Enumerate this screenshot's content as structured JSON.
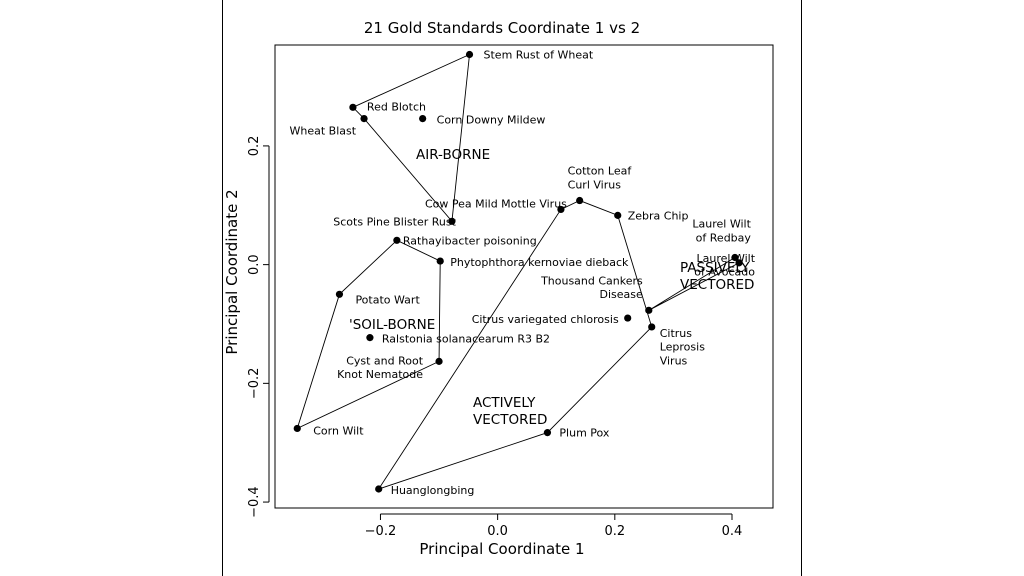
{
  "chart_data": {
    "type": "scatter",
    "title": "21 Gold Standards Coordinate 1 vs 2",
    "xlabel": "Principal Coordinate 1",
    "ylabel": "Principal Coordinate 2",
    "xlim": [
      -0.38,
      0.47
    ],
    "ylim": [
      -0.41,
      0.37
    ],
    "xticks": [
      -0.2,
      0.0,
      0.2,
      0.4
    ],
    "xtick_labels": [
      "−0.2",
      "0.0",
      "0.2",
      "0.4"
    ],
    "yticks": [
      -0.4,
      -0.2,
      0.0,
      0.2
    ],
    "ytick_labels": [
      "−0.4",
      "−0.2",
      "0.0",
      "0.2"
    ],
    "grid": false,
    "points": [
      {
        "label": [
          "Stem Rust of Wheat"
        ],
        "x": -0.048,
        "y": 0.354
      },
      {
        "label": [
          "Red Blotch"
        ],
        "x": -0.247,
        "y": 0.265
      },
      {
        "label": [
          "Wheat Blast"
        ],
        "x": -0.228,
        "y": 0.246
      },
      {
        "label": [
          "Corn Downy Mildew"
        ],
        "x": -0.128,
        "y": 0.246
      },
      {
        "label": [
          "Scots Pine Blister Rust"
        ],
        "x": -0.078,
        "y": 0.073
      },
      {
        "label": [
          "Cow Pea Mild Mottle Virus"
        ],
        "x": 0.108,
        "y": 0.093
      },
      {
        "label": [
          "Cotton Leaf",
          "Curl Virus"
        ],
        "x": 0.14,
        "y": 0.108
      },
      {
        "label": [
          "Zebra Chip"
        ],
        "x": 0.205,
        "y": 0.083
      },
      {
        "label": [
          "Laurel Wilt",
          "of Redbay"
        ],
        "x": 0.405,
        "y": 0.012
      },
      {
        "label": [
          "Laurel Wilt",
          "of Avocado"
        ],
        "x": 0.412,
        "y": 0.003
      },
      {
        "label": [
          "Thousand Cankers",
          "Disease"
        ],
        "x": 0.258,
        "y": -0.077
      },
      {
        "label": [
          "Rathayibacter poisoning"
        ],
        "x": -0.172,
        "y": 0.041
      },
      {
        "label": [
          "Phytophthora kernoviae dieback"
        ],
        "x": -0.098,
        "y": 0.006
      },
      {
        "label": [
          "Potato Wart"
        ],
        "x": -0.27,
        "y": -0.05
      },
      {
        "label": [
          "Citrus variegated chlorosis"
        ],
        "x": 0.222,
        "y": -0.09
      },
      {
        "label": [
          "Citrus",
          "Leprosis",
          "Virus"
        ],
        "x": 0.263,
        "y": -0.105
      },
      {
        "label": [
          "Ralstonia solanacearum R3 B2"
        ],
        "x": -0.218,
        "y": -0.123
      },
      {
        "label": [
          "Cyst and Root",
          "Knot Nematode"
        ],
        "x": -0.1,
        "y": -0.163
      },
      {
        "label": [
          "Corn Wilt"
        ],
        "x": -0.342,
        "y": -0.276
      },
      {
        "label": [
          "Plum Pox"
        ],
        "x": 0.085,
        "y": -0.283
      },
      {
        "label": [
          "Huanglongbing"
        ],
        "x": -0.203,
        "y": -0.378
      }
    ],
    "groups": [
      {
        "name": [
          "AIR-BORNE"
        ],
        "hull": [
          [
            -0.048,
            0.354
          ],
          [
            -0.247,
            0.265
          ],
          [
            -0.228,
            0.246
          ],
          [
            -0.078,
            0.073
          ],
          [
            -0.048,
            0.354
          ]
        ]
      },
      {
        "name": [
          "'SOIL-BORNE"
        ],
        "hull": [
          [
            -0.172,
            0.041
          ],
          [
            -0.098,
            0.006
          ],
          [
            -0.1,
            -0.163
          ],
          [
            -0.342,
            -0.276
          ],
          [
            -0.27,
            -0.05
          ],
          [
            -0.172,
            0.041
          ]
        ]
      },
      {
        "name": [
          "ACTIVELY",
          "VECTORED"
        ],
        "hull": [
          [
            -0.203,
            -0.378
          ],
          [
            0.108,
            0.093
          ],
          [
            0.14,
            0.108
          ],
          [
            0.205,
            0.083
          ],
          [
            0.263,
            -0.105
          ],
          [
            0.085,
            -0.283
          ],
          [
            -0.203,
            -0.378
          ]
        ]
      },
      {
        "name": [
          "PASSIVELY",
          "VECTORED"
        ],
        "hull": [
          [
            0.405,
            0.012
          ],
          [
            0.412,
            0.003
          ],
          [
            0.258,
            -0.077
          ],
          [
            0.405,
            0.012
          ]
        ]
      }
    ]
  }
}
